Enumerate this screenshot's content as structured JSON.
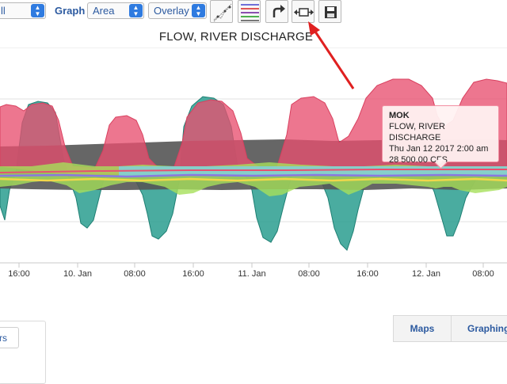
{
  "toolbar": {
    "first_select_value": "ll",
    "graph_label": "Graph",
    "graph_type_value": "Area",
    "mode_value": "Overlay",
    "buttons": [
      "trend-chart-icon",
      "legend-lines-icon",
      "redo-icon",
      "expand-horizontal-icon",
      "save-icon"
    ]
  },
  "chart_data": {
    "type": "area",
    "title": "FLOW, RIVER DISCHARGE",
    "xlabel": "",
    "ylabel": "",
    "x_ticks": [
      "16:00",
      "10. Jan",
      "08:00",
      "16:00",
      "11. Jan",
      "08:00",
      "16:00",
      "12. Jan",
      "08:00"
    ],
    "grid": "horizontal",
    "series_colors": [
      "#e8506f",
      "#2a9d8f",
      "#555555",
      "#a6e05a",
      "#7ad3ee",
      "#f2d74a",
      "#8a78e0"
    ],
    "tooltip": {
      "series": "MOK",
      "parameter": "FLOW, RIVER DISCHARGE",
      "datetime": "Thu Jan 12 2017 2:00 am",
      "value": "28 500.00 CFS"
    }
  },
  "tabs": {
    "maps": "Maps",
    "graphing": "Graphing"
  },
  "left_button_label": "rs"
}
